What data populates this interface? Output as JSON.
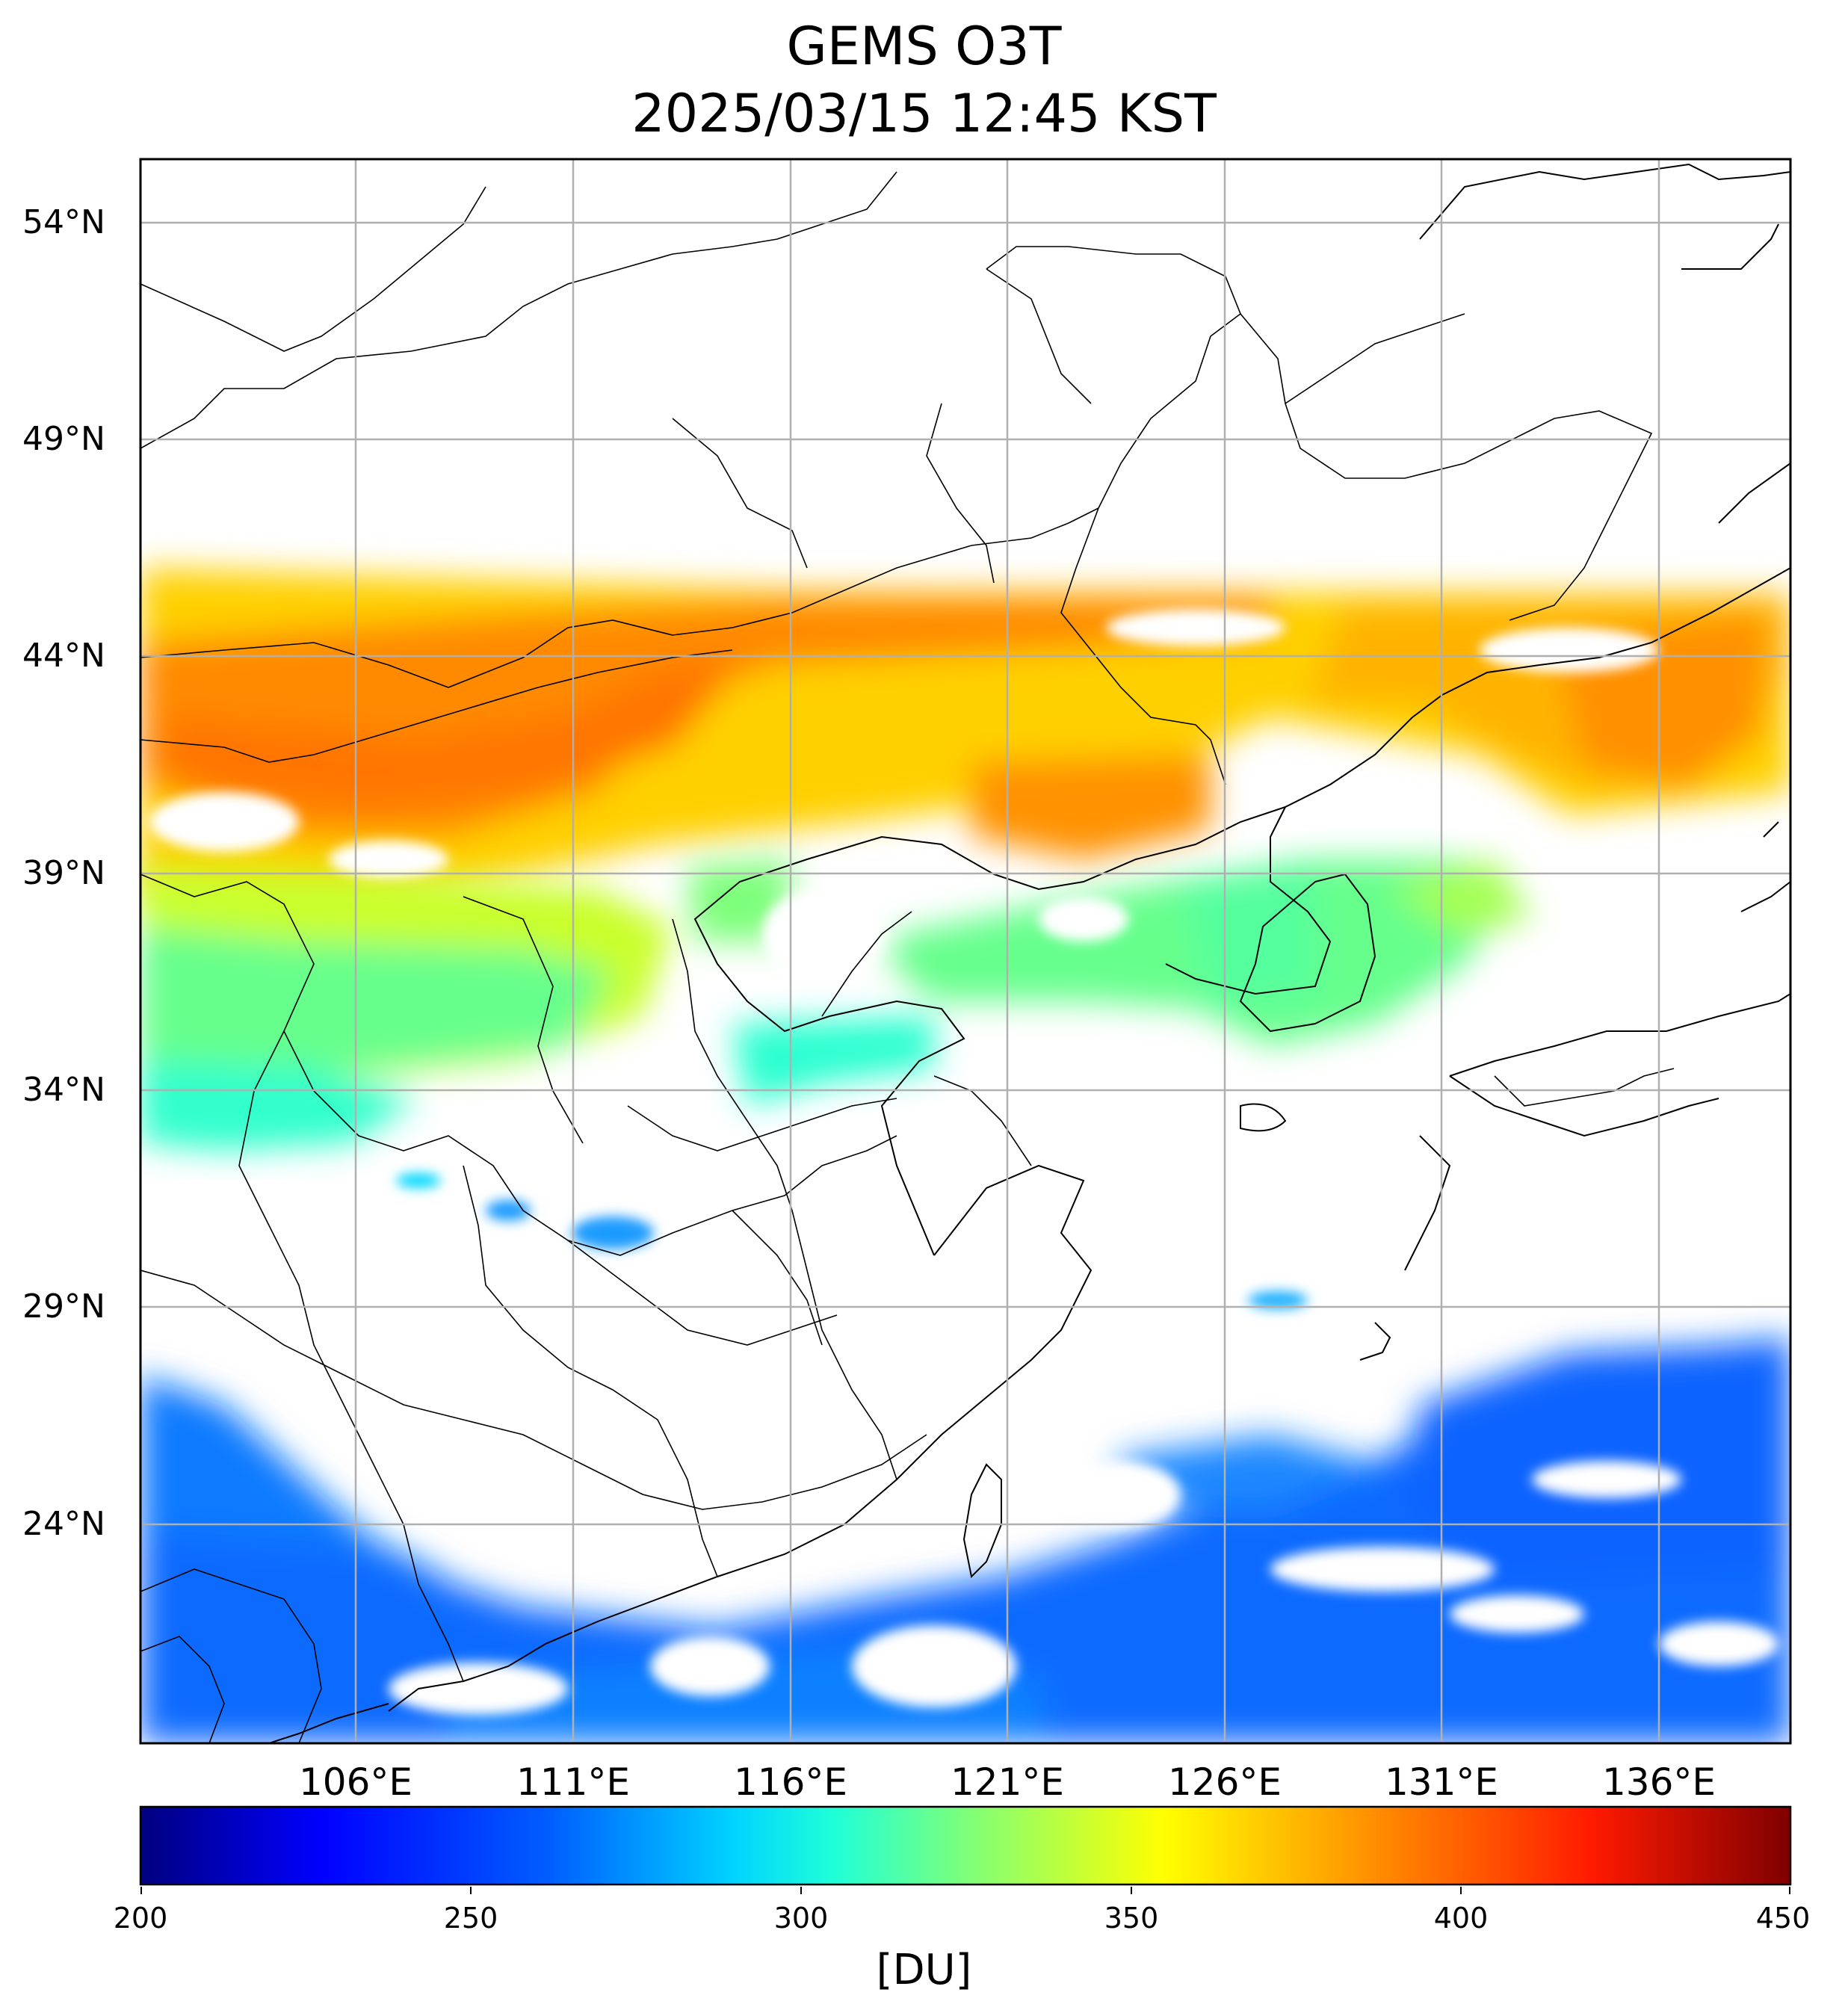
{
  "title": {
    "line1": "GEMS O3T",
    "line2": "2025/03/15 12:45 KST"
  },
  "map": {
    "lon_range": [
      101.0,
      139.0
    ],
    "lat_range": [
      19.5,
      56.0
    ],
    "lat_ticks": [
      "54°N",
      "49°N",
      "44°N",
      "39°N",
      "34°N",
      "29°N",
      "24°N"
    ],
    "lon_ticks": [
      "106°E",
      "111°E",
      "116°E",
      "121°E",
      "126°E",
      "131°E",
      "136°E"
    ],
    "grid": true,
    "coastlines": true,
    "borders": true
  },
  "colorbar": {
    "min": 200,
    "max": 450,
    "ticks": [
      "200",
      "250",
      "300",
      "350",
      "400",
      "450"
    ],
    "unit": "[DU]",
    "colormap": "jet",
    "colors": [
      "#00007f",
      "#0000ff",
      "#007fff",
      "#00ffff",
      "#7fff7f",
      "#ffff00",
      "#ff7f00",
      "#ff0000",
      "#7f0000"
    ]
  },
  "ozone_bands": [
    {
      "region": "northern band ~41-46N",
      "value_du": 385,
      "color": "#ff9900"
    },
    {
      "region": "Mongolia-Inner Mongolia core",
      "value_du": 395,
      "color": "#ff7a00"
    },
    {
      "region": "~39N",
      "value_du": 355,
      "color": "#e6ff00"
    },
    {
      "region": "Korea / Yellow Sea ~37N",
      "value_du": 330,
      "color": "#66ff88"
    },
    {
      "region": "~34N",
      "value_du": 310,
      "color": "#22ffcc"
    },
    {
      "region": "~30N",
      "value_du": 280,
      "color": "#0099ff"
    },
    {
      "region": "southern ocean ~21-27N",
      "value_du": 265,
      "color": "#0066ff"
    }
  ]
}
